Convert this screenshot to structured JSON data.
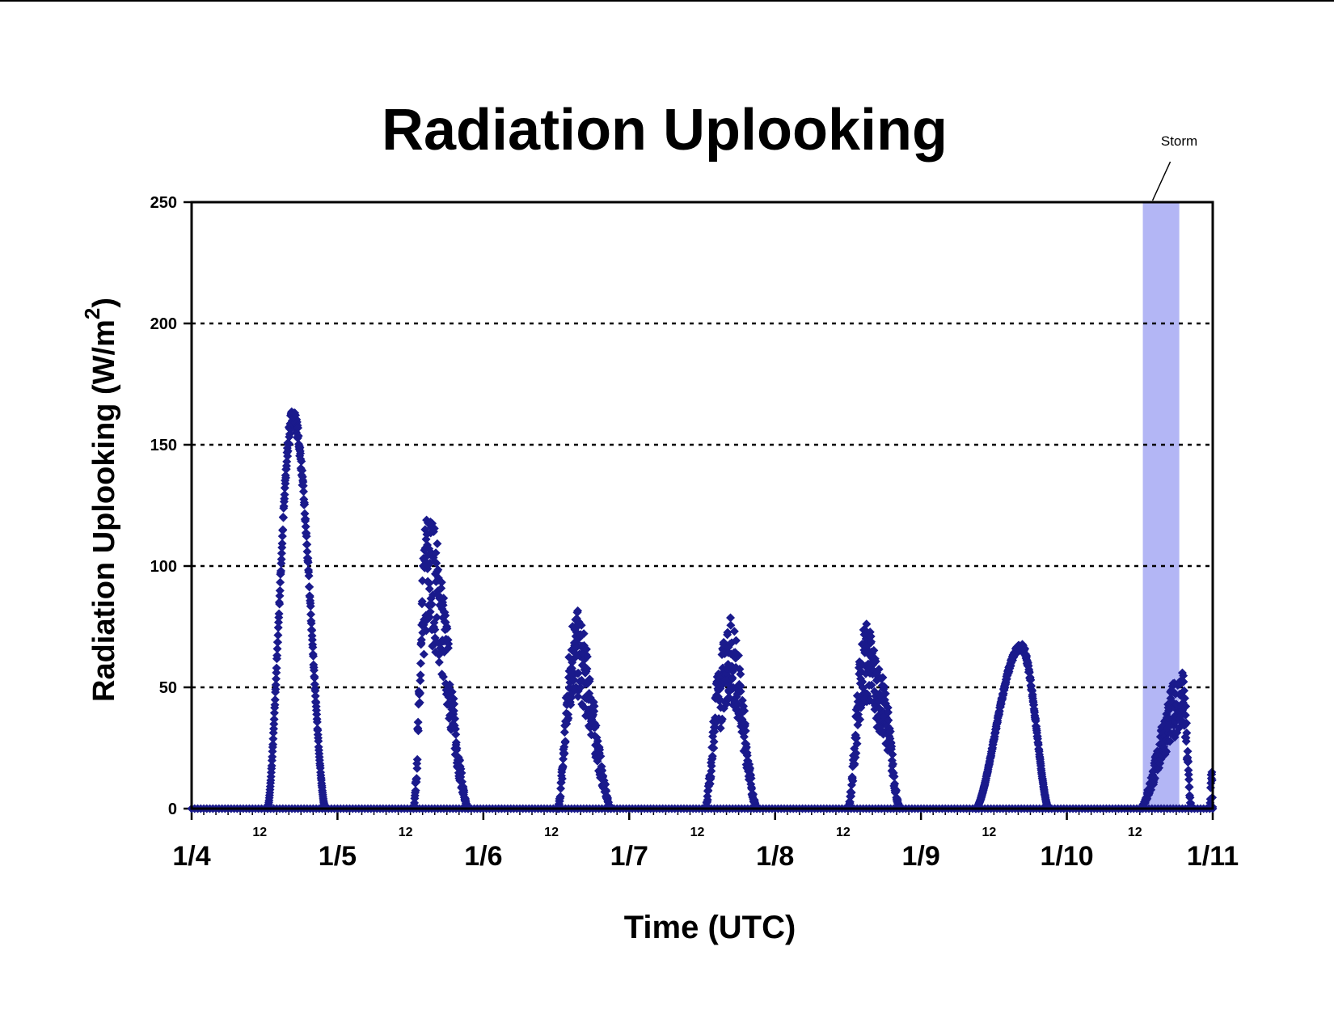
{
  "chart_data": {
    "type": "scatter",
    "title": "Radiation Uplooking",
    "xlabel": "Time (UTC)",
    "ylabel": "Radiation Uplooking (W/m",
    "ylabel_superscript": "2",
    "ylabel_suffix": ")",
    "ylim": [
      0,
      250
    ],
    "yticks": [
      0,
      50,
      100,
      150,
      200,
      250
    ],
    "xlim": [
      "1/4",
      "1/11"
    ],
    "xticks_major": [
      "1/4",
      "1/5",
      "1/6",
      "1/7",
      "1/8",
      "1/9",
      "1/10",
      "1/11"
    ],
    "xticks_minor_label": "12",
    "grid": "horizontal dotted at 50, 100, 150, 200",
    "marker": "diamond",
    "colors": {
      "series": "#1a1a8c",
      "storm_band": "#b3b6f5",
      "grid": "#000000"
    },
    "storm": {
      "label": "Storm",
      "start": "1/10 12:30",
      "end": "1/10 18:30"
    },
    "series": [
      {
        "date": "1/4",
        "peaks": [
          {
            "time": "16:40",
            "value": 165,
            "note": "smooth peak"
          }
        ],
        "nonzero_hours": [
          "12:30",
          "22:00"
        ]
      },
      {
        "date": "1/5",
        "peaks": [
          {
            "time": "14:50",
            "value": 125
          },
          {
            "time": "16:00",
            "value": 90
          },
          {
            "time": "18:30",
            "value": 40
          }
        ],
        "nonzero_hours": [
          "12:30",
          "21:30"
        ]
      },
      {
        "date": "1/6",
        "peaks": [
          {
            "time": "15:00",
            "value": 83
          },
          {
            "time": "16:50",
            "value": 40
          },
          {
            "time": "18:30",
            "value": 25
          }
        ],
        "nonzero_hours": [
          "12:15",
          "21:00"
        ]
      },
      {
        "date": "1/7",
        "peaks": [
          {
            "time": "15:00",
            "value": 60
          },
          {
            "time": "16:30",
            "value": 80
          },
          {
            "time": "18:30",
            "value": 20
          }
        ],
        "nonzero_hours": [
          "12:30",
          "21:00"
        ]
      },
      {
        "date": "1/8",
        "peaks": [
          {
            "time": "14:50",
            "value": 78
          },
          {
            "time": "16:00",
            "value": 65
          },
          {
            "time": "17:30",
            "value": 55
          }
        ],
        "nonzero_hours": [
          "12:00",
          "20:30"
        ]
      },
      {
        "date": "1/9",
        "peaks": [
          {
            "time": "16:30",
            "value": 68,
            "note": "smooth peak"
          }
        ],
        "nonzero_hours": [
          "09:00",
          "21:00"
        ]
      },
      {
        "date": "1/10",
        "peaks": [
          {
            "time": "14:00",
            "value": 5
          },
          {
            "time": "19:00",
            "value": 57
          }
        ],
        "nonzero_hours": [
          "12:00",
          "20:30"
        ]
      },
      {
        "date": "1/10 late",
        "peaks": [
          {
            "time": "23:50",
            "value": 17
          }
        ],
        "nonzero_hours": [
          "23:30",
          "24:00"
        ]
      }
    ]
  }
}
